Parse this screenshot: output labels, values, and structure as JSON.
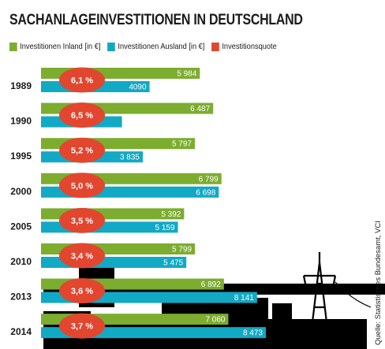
{
  "title": "SACHANLAGEINVESTITIONEN IN DEUTSCHLAND",
  "source": "Quelle: Statistisches Bundesamt, VCI",
  "colors": {
    "inland": "#7cad2f",
    "ausland": "#12a9c4",
    "quote": "#e2462f",
    "silhouette": "#000000"
  },
  "chart_data": {
    "type": "bar",
    "categories": [
      "1989",
      "1990",
      "1995",
      "2000",
      "2005",
      "2010",
      "2013",
      "2014"
    ],
    "series": [
      {
        "name": "Investitionen Inland [in €]",
        "values": [
          5984,
          6487,
          5797,
          6799,
          5392,
          5799,
          6892,
          7060
        ],
        "labels": [
          "5 984",
          "6 487",
          "5 797",
          "6 799",
          "5 392",
          "5 799",
          "6 892",
          "7 060"
        ]
      },
      {
        "name": "Investitionen Ausland [in €]",
        "values": [
          4090,
          3050,
          3835,
          6698,
          5159,
          5475,
          8141,
          8473
        ],
        "labels": [
          "4090",
          "",
          "3 835",
          "6 698",
          "5 159",
          "5 475",
          "8 141",
          "8 473"
        ]
      },
      {
        "name": "Investitionsquote",
        "values": [
          6.1,
          6.5,
          5.2,
          5.0,
          3.5,
          3.4,
          3.6,
          3.7
        ],
        "labels": [
          "6,1 %",
          "6,5 %",
          "5,2 %",
          "5,0 %",
          "3,5 %",
          "3,4 %",
          "3,6 %",
          "3,7 %"
        ]
      }
    ],
    "orientation": "horizontal",
    "legend_position": "top-left",
    "grid": false
  }
}
